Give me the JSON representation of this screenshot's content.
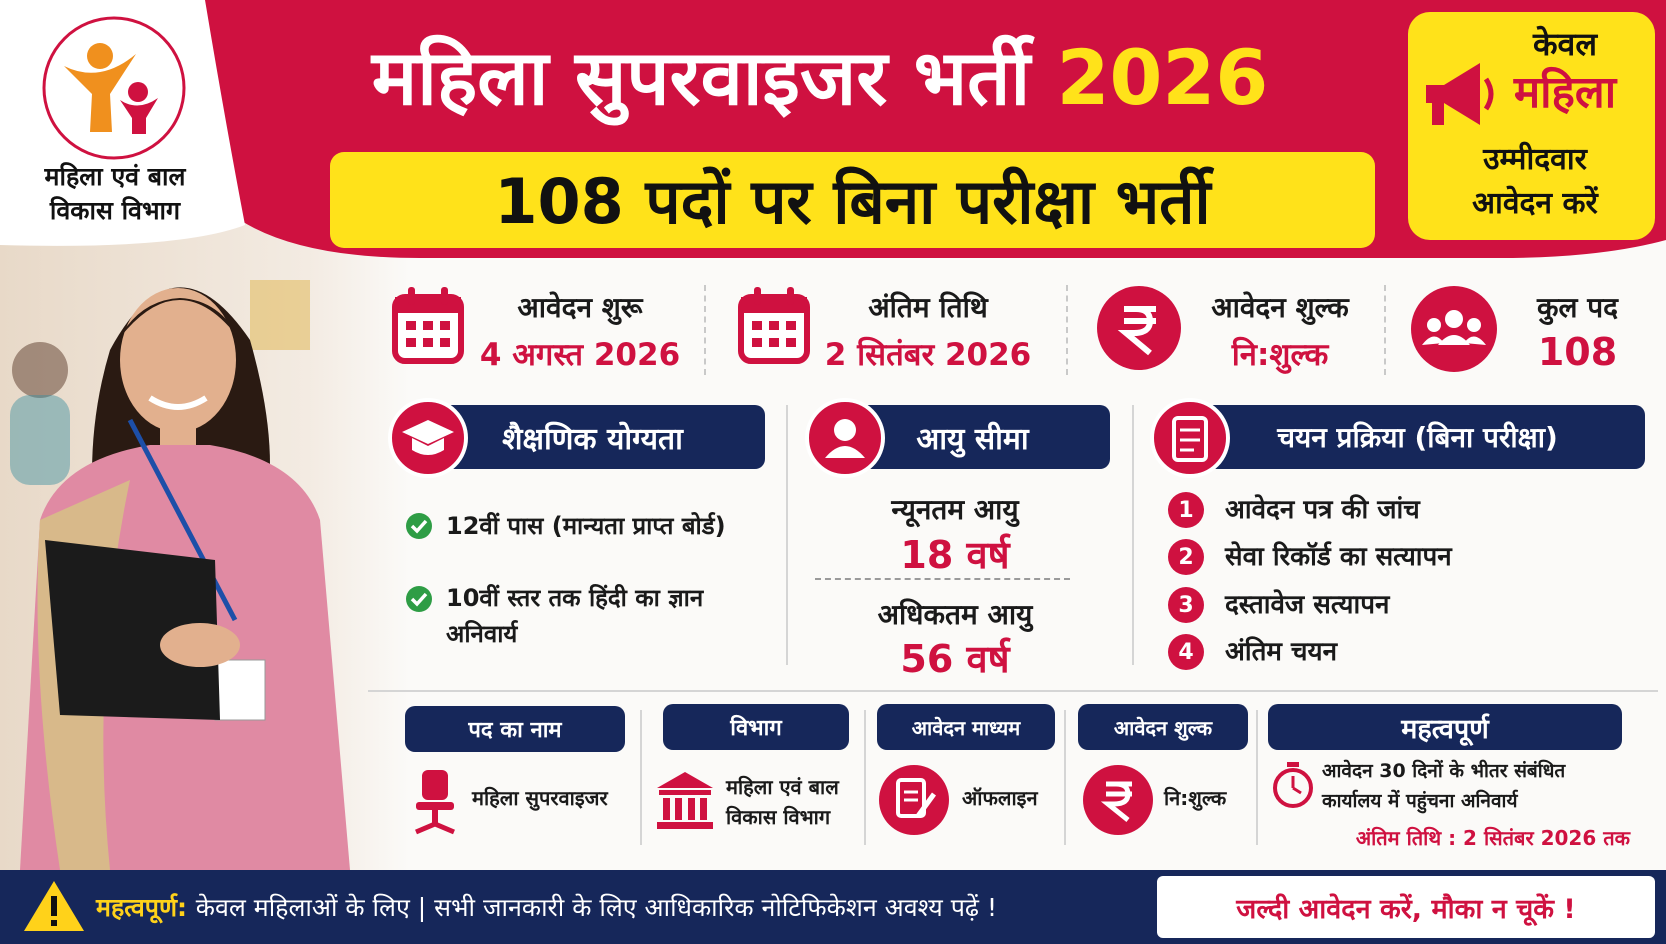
{
  "header": {
    "title": "महिला सुपरवाइजर भर्ती",
    "year": "2026",
    "subtitle": "108 पदों पर बिना परीक्षा भर्ती"
  },
  "logo": {
    "lines": [
      "महिला एवं बाल",
      "विकास विभाग"
    ]
  },
  "badge": {
    "lines": [
      "केवल",
      "महिला",
      "उम्मीदवार",
      "आवेदन करें"
    ]
  },
  "stats": [
    {
      "label": "आवेदन शुरू",
      "value": "4 अगस्त 2026"
    },
    {
      "label": "अंतिम तिथि",
      "value": "2 सितंबर 2026"
    },
    {
      "label": "आवेदन शुल्क",
      "value": "नि:शुल्क"
    },
    {
      "label": "कुल पद",
      "value": "108"
    }
  ],
  "qualification": {
    "title": "शैक्षणिक योग्यता",
    "items": [
      "12वीं पास (मान्यता प्राप्त बोर्ड)",
      "10वीं स्तर तक हिंदी का ज्ञान अनिवार्य"
    ]
  },
  "age": {
    "title": "आयु सीमा",
    "min_label": "न्यूनतम आयु",
    "min_value": "18 वर्ष",
    "max_label": "अधिकतम आयु",
    "max_value": "56 वर्ष"
  },
  "selection": {
    "title": "चयन प्रक्रिया (बिना परीक्षा)",
    "steps": [
      {
        "number": "1",
        "text": "आवेदन पत्र की जांच"
      },
      {
        "number": "2",
        "text": "सेवा रिकॉर्ड का सत्यापन"
      },
      {
        "number": "3",
        "text": "दस्तावेज सत्यापन"
      },
      {
        "number": "4",
        "text": "अंतिम चयन"
      }
    ]
  },
  "details": [
    {
      "title": "पद का नाम",
      "text": "महिला सुपरवाइजर"
    },
    {
      "title": "विभाग",
      "text": "महिला एवं बाल विकास विभाग"
    },
    {
      "title": "आवेदन माध्यम",
      "text": "ऑफलाइन"
    },
    {
      "title": "आवेदन शुल्क",
      "text": "नि:शुल्क"
    }
  ],
  "important": {
    "title": "महत्वपूर्ण",
    "text": "आवेदन 30 दिनों के भीतर संबंधित कार्यालय में पहुंचना अनिवार्य",
    "deadline": "अंतिम तिथि : 2 सितंबर 2026 तक"
  },
  "footer": {
    "label": "महत्वपूर्ण:",
    "text": "केवल महिलाओं के लिए | सभी जानकारी के लिए आधिकारिक नोटिफिकेशन अवश्य पढ़ें !",
    "cta": "जल्दी आवेदन करें, मौका न चूकें !"
  }
}
